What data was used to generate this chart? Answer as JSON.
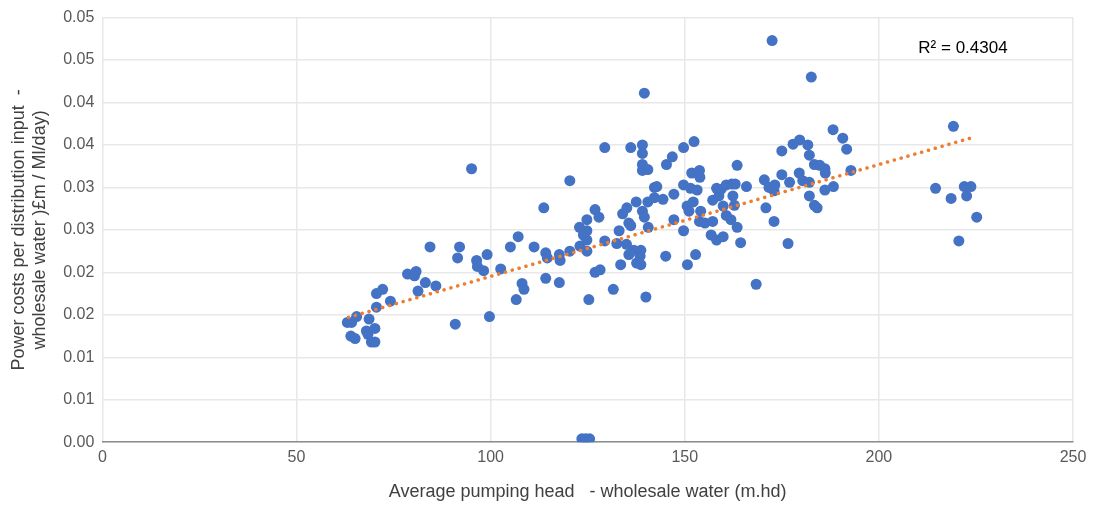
{
  "chart_data": {
    "type": "scatter",
    "xlabel": "Average pumping head   - wholesale water (m.hd)",
    "ylabel": "Power costs per distribution input  -\nwholesale water )£m / Ml/day)",
    "annotations": [
      "R² = 0.4304"
    ],
    "xlim": [
      0,
      250
    ],
    "xticks": [
      0,
      50,
      100,
      150,
      200,
      250
    ],
    "ylim": [
      0,
      0.05
    ],
    "yticks": [
      {
        "value": 0,
        "label": "0.00"
      },
      {
        "value": 0.005,
        "label": "0.01"
      },
      0.01,
      {
        "value": 0.015,
        "label": "0.02"
      },
      0.02,
      {
        "value": 0.025,
        "label": "0.03"
      },
      0.03,
      {
        "value": 0.035,
        "label": "0.04"
      },
      0.04,
      {
        "value": 0.045,
        "label": "0.05"
      },
      0.05
    ],
    "grid": true,
    "marker": "circle",
    "series": [
      {
        "color": "#4472c4",
        "x": [
          63.1,
          64.2,
          65.5,
          64,
          65.1,
          68,
          68.4,
          70.2,
          69.3,
          70.2,
          68.7,
          70.6,
          70.6,
          72.2,
          74.2,
          78.6,
          80.4,
          80.8,
          81.3,
          83.2,
          84.4,
          85.9,
          90.9,
          92,
          91.5,
          95.1,
          96.4,
          96.6,
          98.2,
          99.1,
          99.7,
          102.6,
          105.1,
          107.1,
          106.6,
          108.1,
          108.6,
          111.2,
          113.7,
          114.2,
          114.6,
          114.2,
          117.7,
          117.9,
          117.7,
          120.4,
          120.4,
          122.9,
          123.9,
          123,
          124.8,
          126.9,
          127.9,
          124.8,
          124.8,
          124.8,
          125.3,
          126.9,
          128.2,
          123.5,
          124.5,
          125.5,
          129.4,
          129.4,
          131.6,
          132.5,
          133.1,
          133.5,
          134,
          135.1,
          135,
          135.6,
          136.1,
          135.6,
          136.1,
          136.9,
          137.5,
          137.6,
          138.7,
          138.7,
          138.5,
          139.1,
          139.1,
          139.6,
          139.1,
          139.1,
          139.1,
          139.6,
          140.5,
          140.5,
          140.6,
          140,
          142.2,
          142.8,
          142.2,
          144.4,
          145.3,
          145.1,
          146.8,
          147.2,
          147.2,
          149.7,
          149.7,
          149.7,
          150.6,
          151.1,
          152.2,
          150.7,
          152.8,
          151.5,
          153.2,
          151.8,
          152.4,
          153.8,
          153.9,
          153.8,
          155.2,
          154.1,
          157.2,
          156.8,
          158.2,
          159.9,
          157.2,
          158.8,
          158.2,
          159.4,
          160.7,
          162.1,
          163,
          162.4,
          162.8,
          159.9,
          160.7,
          161.9,
          163.5,
          163.5,
          164.4,
          165.9,
          168.4,
          170.5,
          170.9,
          171.7,
          173,
          173.2,
          173,
          172.5,
          175,
          175,
          176.6,
          177,
          177.9,
          179.6,
          179.5,
          180.4,
          181.7,
          182.1,
          182.1,
          182.1,
          182.6,
          183.4,
          183.4,
          184.1,
          184.8,
          186.1,
          186.2,
          186.1,
          188.3,
          188.2,
          190.7,
          191.7,
          192.8,
          214.6,
          218.6,
          219.2,
          220.6,
          222,
          222.6,
          223.7,
          225.2
        ],
        "values": [
          0.0141,
          0.0141,
          0.0148,
          0.0125,
          0.0122,
          0.0131,
          0.0127,
          0.0134,
          0.0118,
          0.0118,
          0.0145,
          0.0159,
          0.0175,
          0.018,
          0.0166,
          0.0198,
          0.0196,
          0.0201,
          0.0178,
          0.0188,
          0.023,
          0.0184,
          0.0139,
          0.023,
          0.0217,
          0.0322,
          0.0214,
          0.0207,
          0.0202,
          0.0221,
          0.0148,
          0.0204,
          0.023,
          0.0242,
          0.0168,
          0.0187,
          0.018,
          0.023,
          0.0276,
          0.0223,
          0.0217,
          0.0193,
          0.0221,
          0.0214,
          0.0188,
          0.0225,
          0.0308,
          0.0253,
          0.0244,
          0.0231,
          0.0262,
          0.0274,
          0.0265,
          0.0249,
          0.0238,
          0.0225,
          0.0168,
          0.02,
          0.0203,
          0.0004,
          0.0004,
          0.0004,
          0.0347,
          0.0237,
          0.018,
          0.0234,
          0.0249,
          0.0209,
          0.0269,
          0.0276,
          0.0233,
          0.0258,
          0.0255,
          0.0221,
          0.0347,
          0.0226,
          0.0283,
          0.0211,
          0.0226,
          0.0209,
          0.0219,
          0.035,
          0.034,
          0.0411,
          0.0327,
          0.032,
          0.0272,
          0.0265,
          0.0321,
          0.0283,
          0.0253,
          0.0171,
          0.03,
          0.0301,
          0.0288,
          0.0286,
          0.0327,
          0.0219,
          0.0336,
          0.0292,
          0.0262,
          0.0347,
          0.0303,
          0.0249,
          0.0278,
          0.0272,
          0.0283,
          0.0209,
          0.0221,
          0.0299,
          0.0297,
          0.0317,
          0.0354,
          0.032,
          0.0312,
          0.026,
          0.0258,
          0.0272,
          0.026,
          0.0244,
          0.0238,
          0.0242,
          0.0285,
          0.029,
          0.0299,
          0.0298,
          0.0303,
          0.0304,
          0.0304,
          0.029,
          0.0279,
          0.0278,
          0.0267,
          0.0262,
          0.0253,
          0.0326,
          0.0235,
          0.0301,
          0.0186,
          0.0309,
          0.0276,
          0.03,
          0.0296,
          0.0303,
          0.026,
          0.0473,
          0.0343,
          0.0315,
          0.0234,
          0.0306,
          0.0351,
          0.0356,
          0.0317,
          0.0308,
          0.035,
          0.0338,
          0.0306,
          0.029,
          0.043,
          0.0327,
          0.0279,
          0.0276,
          0.0326,
          0.0322,
          0.0317,
          0.0297,
          0.0301,
          0.0368,
          0.0358,
          0.0345,
          0.032,
          0.0299,
          0.0287,
          0.0372,
          0.0237,
          0.0301,
          0.029,
          0.0301,
          0.0265
        ]
      },
      {
        "type": "line",
        "color": "#ed7d31",
        "line_style": "dotted",
        "marker": "none",
        "x": [
          63.4,
          224.3
        ],
        "values": [
          0.0147,
          0.0359
        ]
      }
    ]
  }
}
